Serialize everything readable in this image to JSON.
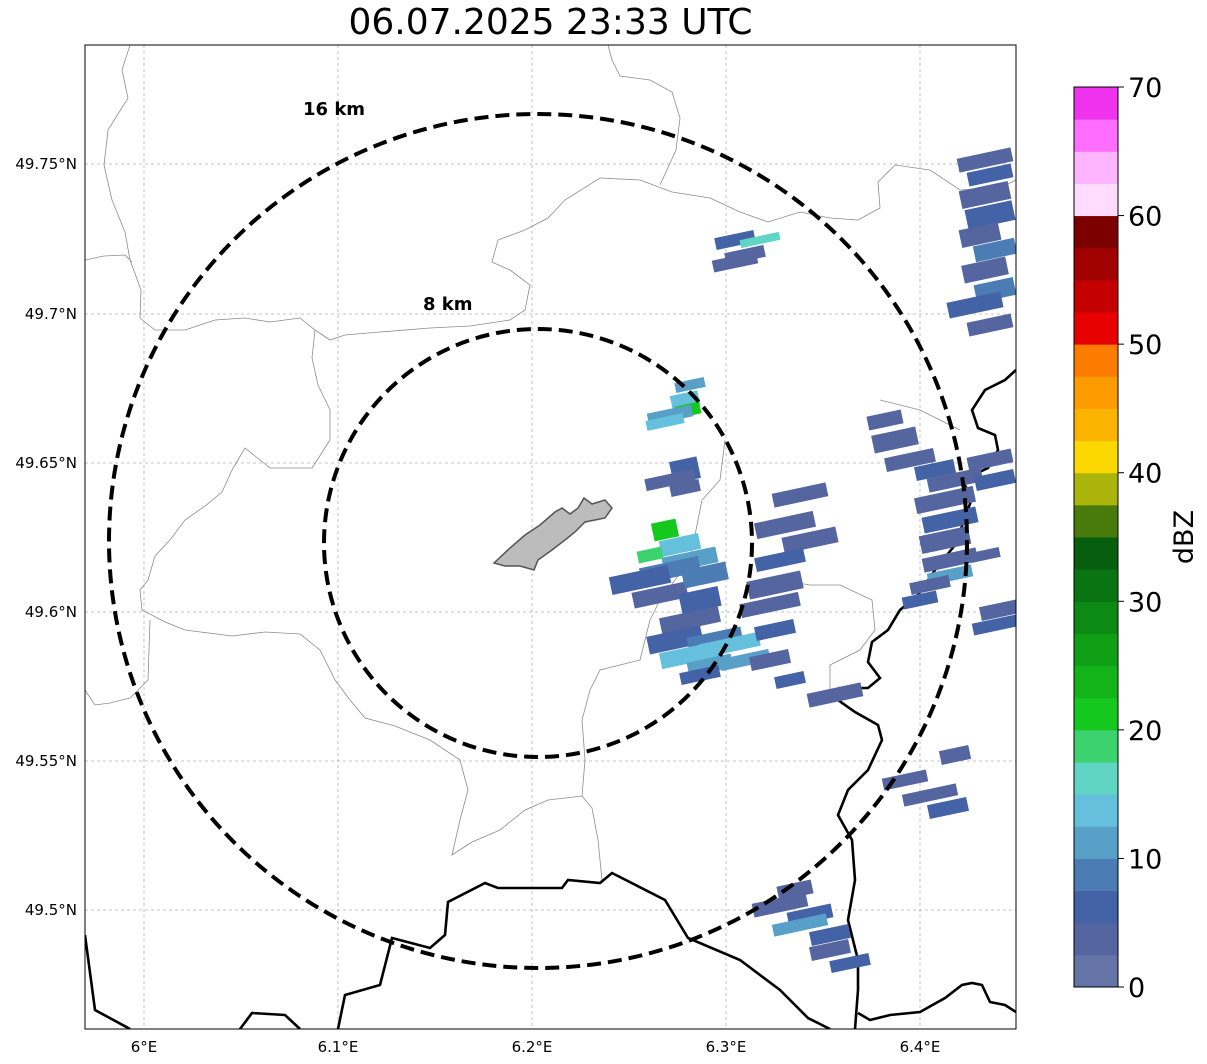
{
  "title": "06.07.2025 23:33 UTC",
  "axes": {
    "lon_ticks": [
      "6°E",
      "6.1°E",
      "6.2°E",
      "6.3°E",
      "6.4°E"
    ],
    "lat_ticks": [
      "49.75°N",
      "49.7°N",
      "49.65°N",
      "49.6°N",
      "49.55°N",
      "49.5°N"
    ]
  },
  "rings": [
    {
      "label": "8 km",
      "radius_km": 8
    },
    {
      "label": "16 km",
      "radius_km": 16
    }
  ],
  "colorbar": {
    "label": "dBZ",
    "tick_labels": [
      "0",
      "10",
      "20",
      "30",
      "40",
      "50",
      "60",
      "70"
    ],
    "min": 0,
    "max": 70,
    "step": 2.5,
    "colors": [
      "#6474a6",
      "#5465a0",
      "#4462a6",
      "#4b7cb4",
      "#58a0c8",
      "#64c0dc",
      "#60d5c3",
      "#3cd26e",
      "#14c81e",
      "#12b41a",
      "#10a016",
      "#0d8a14",
      "#0a7412",
      "#065e0e",
      "#487a0c",
      "#aab40a",
      "#fcd800",
      "#fcb400",
      "#fc9c00",
      "#fc7c00",
      "#e60000",
      "#c40000",
      "#a00000",
      "#7c0000",
      "#ffdcff",
      "#ffb4ff",
      "#ff6eff",
      "#ee32ee"
    ]
  },
  "colors": {
    "borders": "#000000",
    "admin_lines": "#8c8c8c",
    "grid": "#b4b4b4",
    "city_fill": "#bcbcbc",
    "city_edge": "#555555"
  }
}
